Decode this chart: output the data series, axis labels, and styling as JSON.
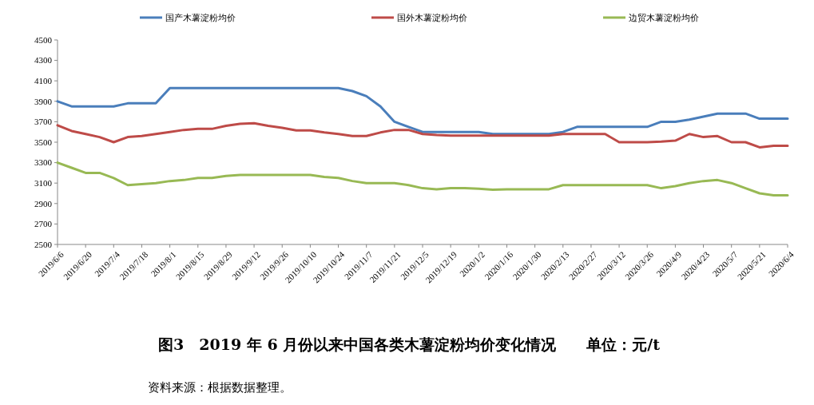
{
  "chart_data": {
    "type": "line",
    "title": "图3　2019 年 6 月份以来中国各类木薯淀粉均价变化情况　　单位：元/t",
    "annotations": [
      "资料来源：根据数据整理。"
    ],
    "categories": [
      "2019/6/6",
      null,
      "2019/6/20",
      null,
      "2019/7/4",
      null,
      "2019/7/18",
      null,
      "2019/8/1",
      null,
      "2019/8/15",
      null,
      "2019/8/29",
      null,
      "2019/9/12",
      null,
      "2019/9/26",
      null,
      "2019/10/10",
      null,
      "2019/10/24",
      null,
      "2019/11/7",
      null,
      "2019/11/21",
      null,
      "2019/12/5",
      null,
      "2019/12/19",
      null,
      "2020/1/2",
      null,
      "2020/1/16",
      null,
      "2020/1/30",
      null,
      "2020/2/13",
      null,
      "2020/2/27",
      null,
      "2020/3/12",
      null,
      "2020/3/26",
      null,
      "2020/4/9",
      null,
      "2020/4/23",
      null,
      "2020/5/7",
      null,
      "2020/5/21",
      null,
      "2020/6/4"
    ],
    "series": [
      {
        "name": "国产木薯淀粉均价",
        "color": "#4a7ebb",
        "values": [
          3900,
          3850,
          3850,
          3850,
          3850,
          3880,
          3880,
          3880,
          4030,
          4030,
          4030,
          4030,
          4030,
          4030,
          4030,
          4030,
          4030,
          4030,
          4030,
          4030,
          4030,
          4000,
          3950,
          3850,
          3700,
          3650,
          3600,
          3600,
          3600,
          3600,
          3600,
          3580,
          3580,
          3580,
          3580,
          3580,
          3600,
          3650,
          3650,
          3650,
          3650,
          3650,
          3650,
          3700,
          3700,
          3720,
          3750,
          3780,
          3780,
          3780,
          3730,
          3730,
          3730
        ]
      },
      {
        "name": "国外木薯淀粉均价",
        "color": "#be4b48",
        "values": [
          3665,
          3610,
          3580,
          3550,
          3500,
          3550,
          3560,
          3580,
          3600,
          3620,
          3630,
          3630,
          3660,
          3680,
          3685,
          3660,
          3640,
          3615,
          3615,
          3595,
          3580,
          3560,
          3560,
          3595,
          3620,
          3620,
          3580,
          3570,
          3565,
          3565,
          3565,
          3565,
          3565,
          3565,
          3565,
          3565,
          3580,
          3580,
          3580,
          3580,
          3500,
          3500,
          3500,
          3505,
          3515,
          3580,
          3550,
          3560,
          3500,
          3500,
          3450,
          3465,
          3465
        ]
      },
      {
        "name": "边贸木薯淀粉均价",
        "color": "#98b954",
        "values": [
          3300,
          3250,
          3200,
          3200,
          3150,
          3080,
          3090,
          3100,
          3120,
          3130,
          3150,
          3150,
          3170,
          3180,
          3180,
          3180,
          3180,
          3180,
          3180,
          3160,
          3150,
          3120,
          3100,
          3100,
          3100,
          3080,
          3050,
          3040,
          3050,
          3050,
          3045,
          3035,
          3040,
          3040,
          3040,
          3040,
          3080,
          3080,
          3080,
          3080,
          3080,
          3080,
          3080,
          3050,
          3070,
          3100,
          3120,
          3130,
          3100,
          3050,
          3000,
          2980,
          2980
        ]
      }
    ],
    "ylim": [
      2500,
      4500
    ],
    "yticks": [
      2500,
      2700,
      2900,
      3100,
      3300,
      3500,
      3700,
      3900,
      4100,
      4300,
      4500
    ],
    "grid": false,
    "legend": "top",
    "marker": "none",
    "line_style": "solid"
  }
}
